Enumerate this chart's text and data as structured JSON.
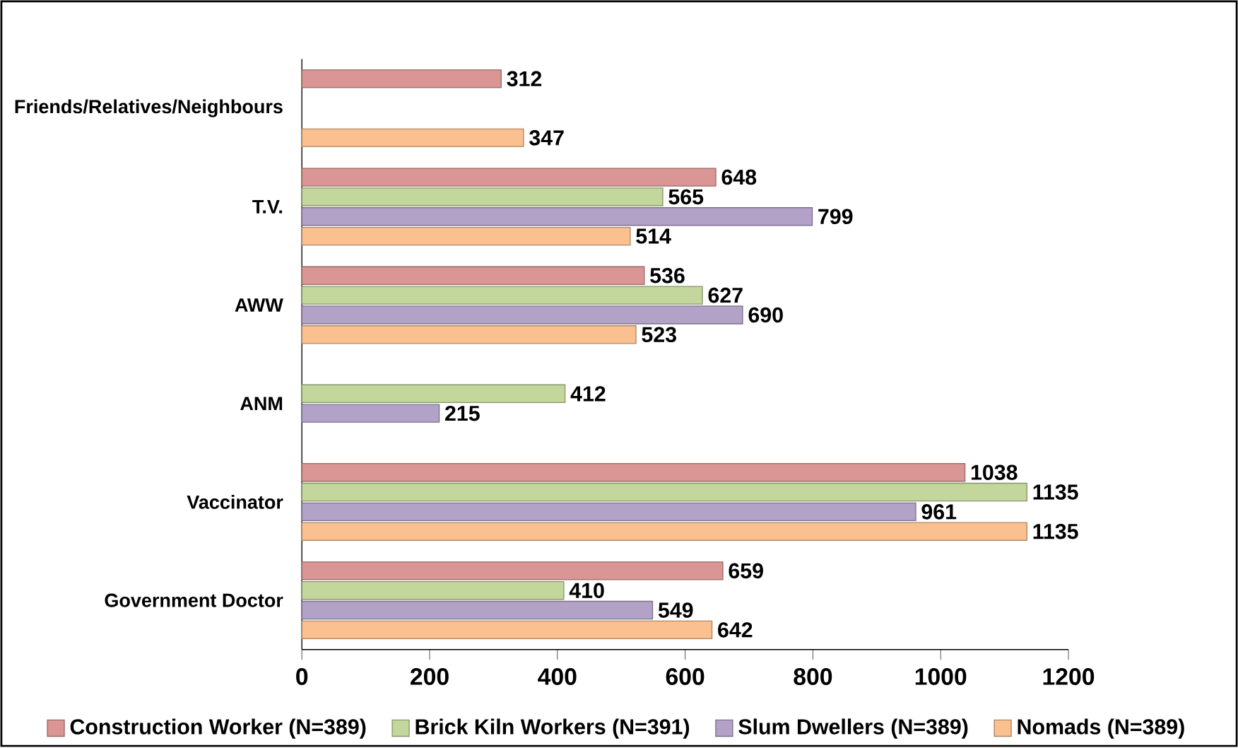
{
  "chart_data": {
    "type": "bar",
    "orientation": "horizontal",
    "categories": [
      "Friends/Relatives/Neighbours",
      "T.V.",
      "AWW",
      "ANM",
      "Vaccinator",
      "Government Doctor"
    ],
    "series": [
      {
        "name": "Construction Worker (N=389)",
        "color": "#d99694",
        "values": [
          312,
          648,
          536,
          null,
          1038,
          659
        ]
      },
      {
        "name": "Brick Kiln Workers (N=391)",
        "color": "#c3d69b",
        "values": [
          null,
          565,
          627,
          412,
          1135,
          410
        ]
      },
      {
        "name": "Slum Dwellers (N=389)",
        "color": "#b3a2c7",
        "values": [
          null,
          799,
          690,
          215,
          961,
          549
        ]
      },
      {
        "name": "Nomads (N=389)",
        "color": "#fac090",
        "values": [
          347,
          514,
          523,
          null,
          1135,
          642
        ]
      }
    ],
    "xlim": [
      0,
      1200
    ],
    "xticks": [
      0,
      200,
      400,
      600,
      800,
      1000,
      1200
    ],
    "data_labels": true,
    "grid": false,
    "legend": "bottom"
  }
}
